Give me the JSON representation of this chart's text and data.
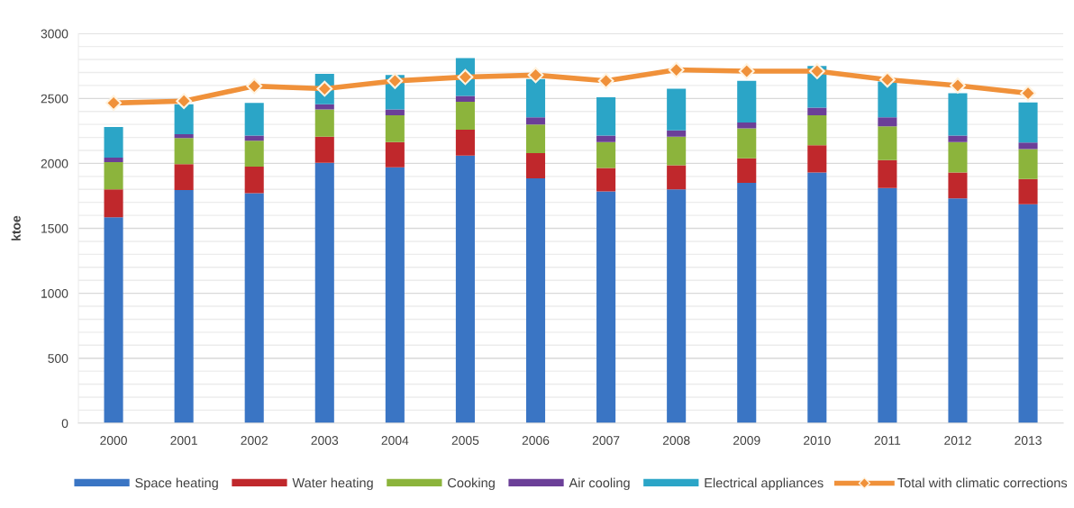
{
  "chart_data": {
    "type": "bar",
    "stacked": true,
    "ylabel": "ktoe",
    "categories": [
      "2000",
      "2001",
      "2002",
      "2003",
      "2004",
      "2005",
      "2006",
      "2007",
      "2008",
      "2009",
      "2010",
      "2011",
      "2012",
      "2013"
    ],
    "ylim": [
      0,
      3000
    ],
    "yticks": [
      0,
      {
        "value": 100,
        "label": null
      },
      {
        "value": 200,
        "label": null
      },
      {
        "value": 300,
        "label": null
      },
      {
        "value": 400,
        "label": null
      },
      500,
      {
        "value": 600,
        "label": null
      },
      {
        "value": 700,
        "label": null
      },
      {
        "value": 800,
        "label": null
      },
      {
        "value": 900,
        "label": null
      },
      1000,
      {
        "value": 1100,
        "label": null
      },
      {
        "value": 1200,
        "label": null
      },
      {
        "value": 1300,
        "label": null
      },
      {
        "value": 1400,
        "label": null
      },
      1500,
      {
        "value": 1600,
        "label": null
      },
      {
        "value": 1700,
        "label": null
      },
      {
        "value": 1800,
        "label": null
      },
      {
        "value": 1900,
        "label": null
      },
      2000,
      {
        "value": 2100,
        "label": null
      },
      {
        "value": 2200,
        "label": null
      },
      {
        "value": 2300,
        "label": null
      },
      {
        "value": 2400,
        "label": null
      },
      2500,
      {
        "value": 2600,
        "label": null
      },
      {
        "value": 2700,
        "label": null
      },
      {
        "value": 2800,
        "label": null
      },
      {
        "value": 2900,
        "label": null
      },
      3000
    ],
    "grid": "y",
    "legend": "bottom",
    "series": [
      {
        "name": "Space heating",
        "color": "#3a75c4",
        "values": [
          1585,
          1795,
          1770,
          2005,
          1970,
          2060,
          1885,
          1785,
          1800,
          1850,
          1930,
          1810,
          1730,
          1685
        ]
      },
      {
        "name": "Water heating",
        "color": "#c0282c",
        "values": [
          215,
          200,
          205,
          200,
          195,
          200,
          195,
          180,
          185,
          190,
          210,
          215,
          200,
          195
        ]
      },
      {
        "name": "Cooking",
        "color": "#8cb43c",
        "values": [
          210,
          200,
          200,
          210,
          205,
          215,
          220,
          200,
          220,
          230,
          230,
          260,
          235,
          230
        ]
      },
      {
        "name": "Air cooling",
        "color": "#6b3f98",
        "values": [
          35,
          30,
          40,
          40,
          45,
          45,
          55,
          50,
          50,
          45,
          60,
          70,
          50,
          50
        ]
      },
      {
        "name": "Electrical appliances",
        "color": "#2ba5c7",
        "values": [
          235,
          230,
          250,
          235,
          265,
          290,
          295,
          295,
          320,
          320,
          320,
          275,
          325,
          310
        ]
      },
      {
        "name": "Total with climatic corrections",
        "type": "line",
        "color": "#f0913a",
        "marker": "diamond",
        "line_style": "solid",
        "values": [
          2465,
          2480,
          2595,
          2575,
          2635,
          2665,
          2680,
          2635,
          2720,
          2710,
          2710,
          2645,
          2600,
          2540
        ]
      }
    ]
  }
}
